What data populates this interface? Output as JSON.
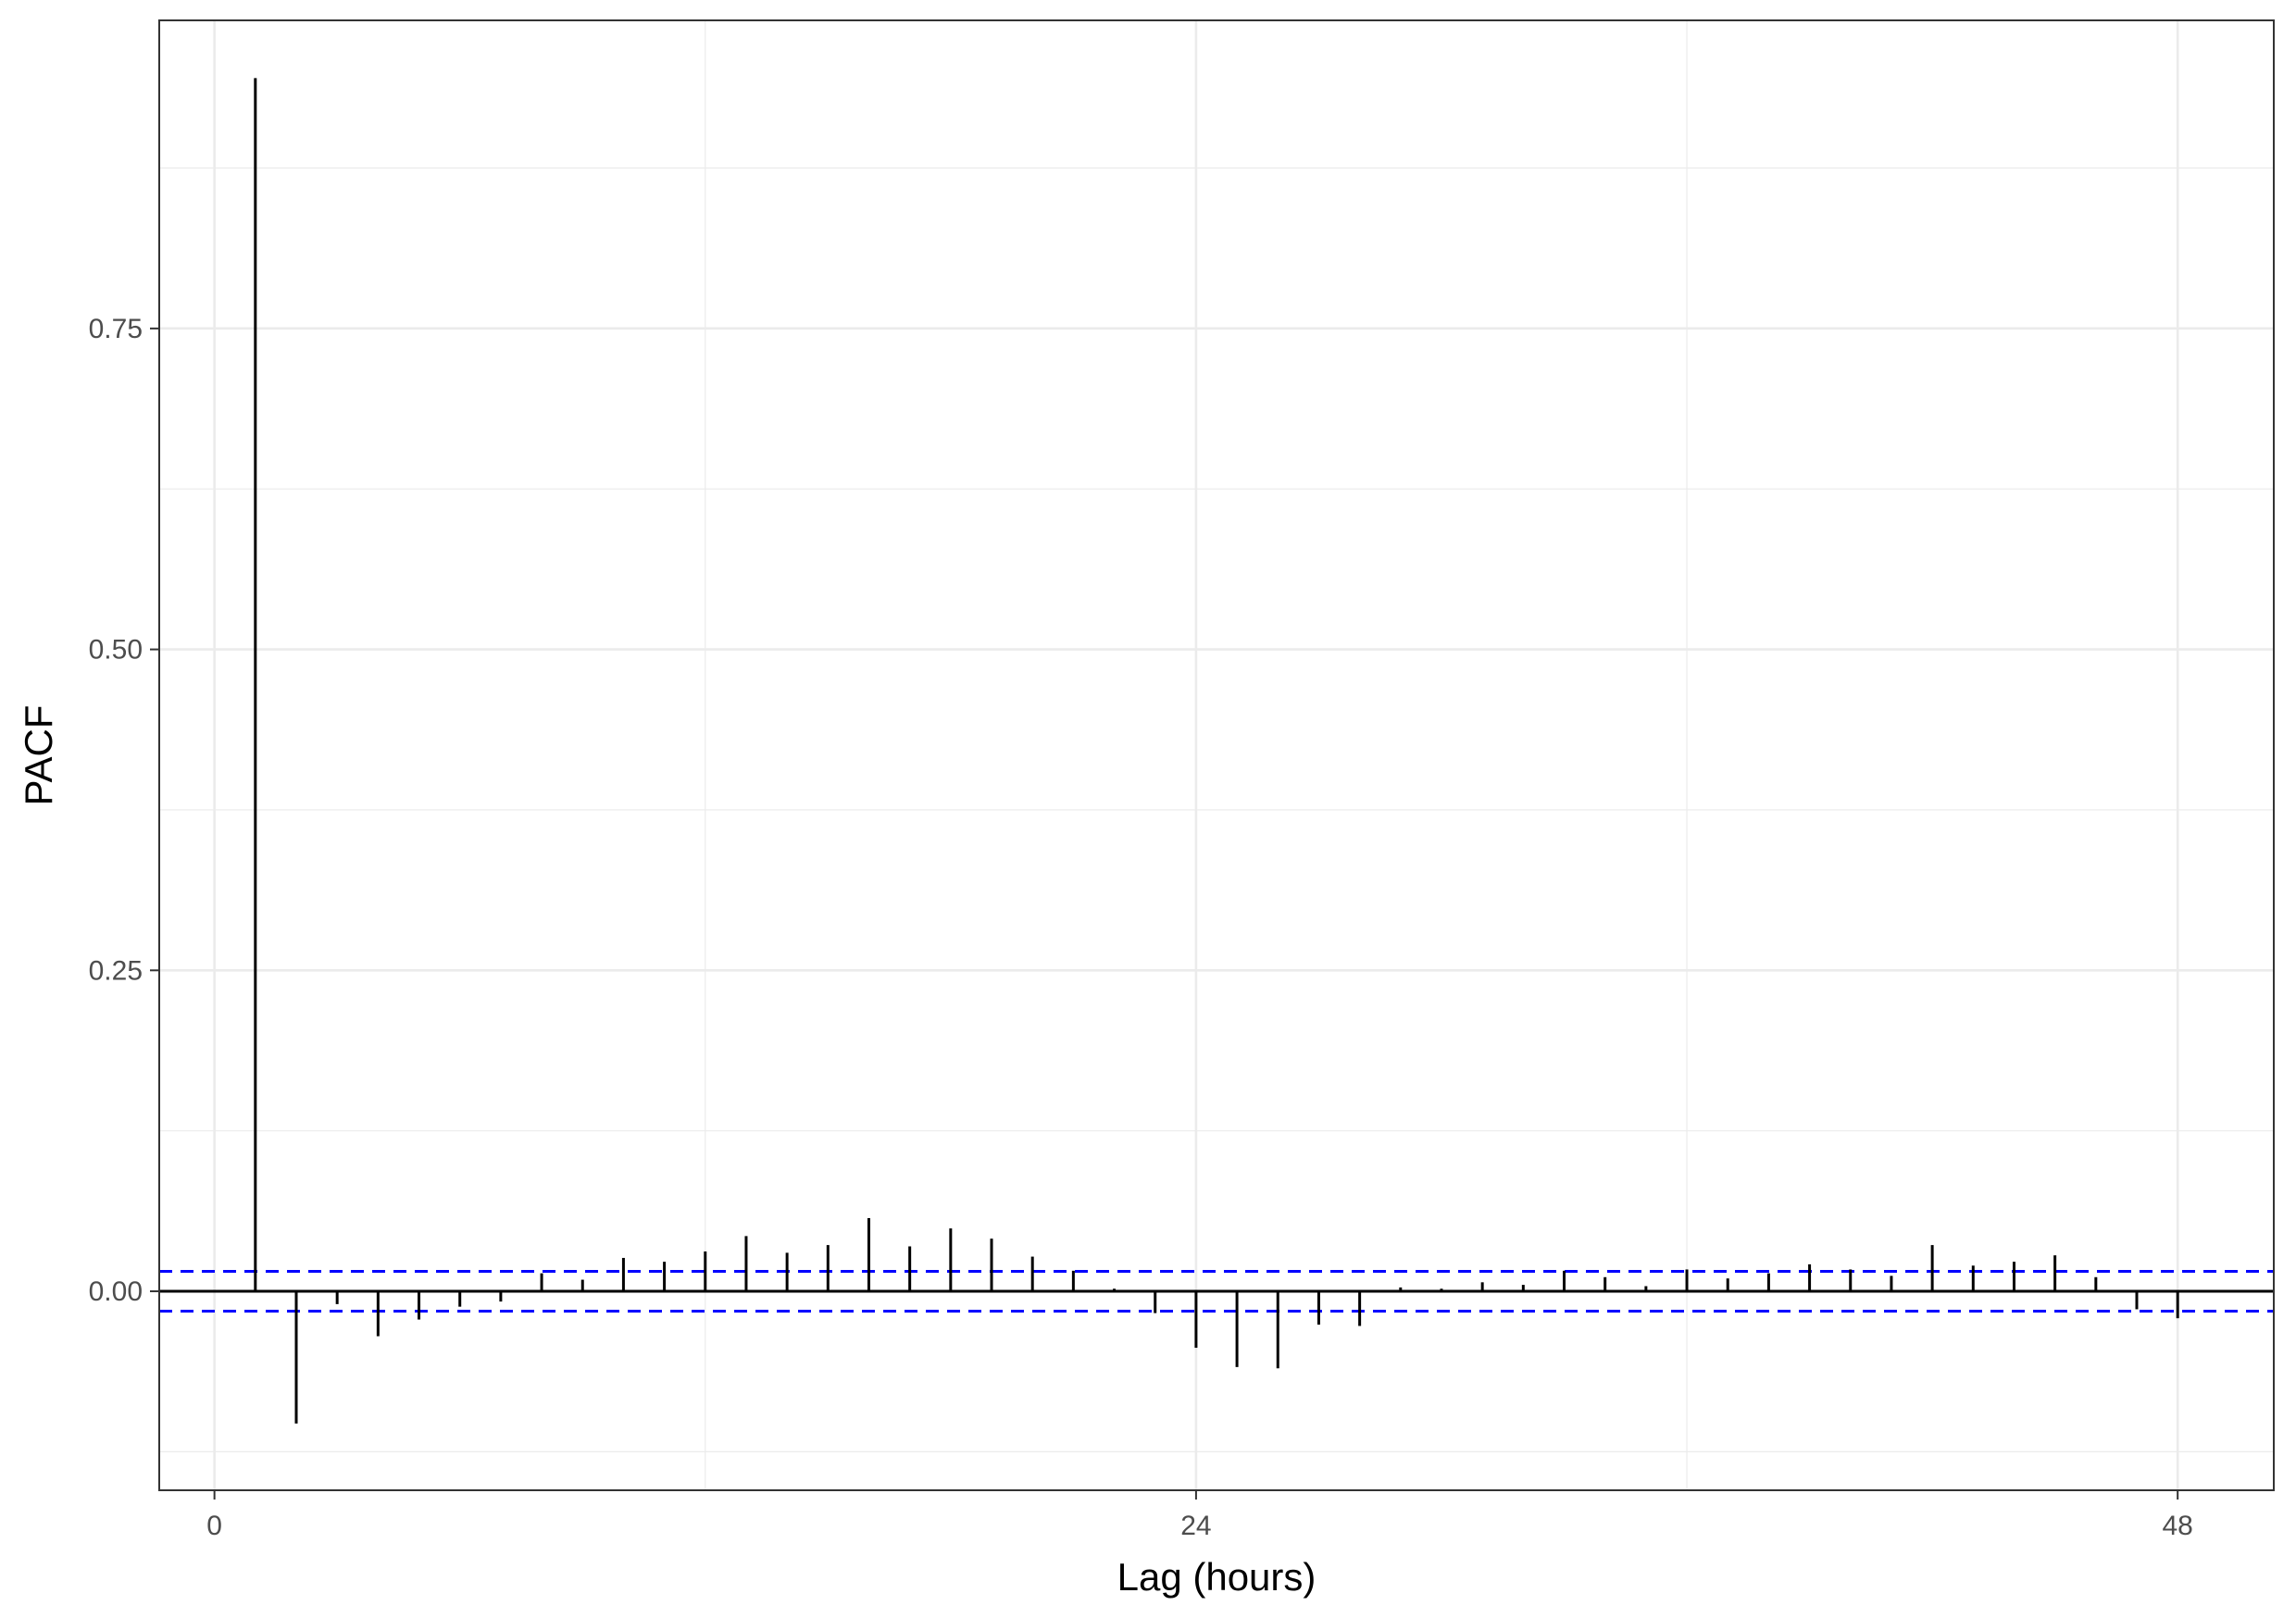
{
  "chart_data": {
    "type": "bar",
    "subtype": "pacf-correlogram",
    "title": "",
    "xlabel": "Lag (hours)",
    "ylabel": "PACF",
    "xlim": [
      -1.35,
      50.35
    ],
    "ylim": [
      -0.155,
      0.99
    ],
    "x_ticks": [
      {
        "value": 0,
        "label": "0"
      },
      {
        "value": 24,
        "label": "24"
      },
      {
        "value": 48,
        "label": "48"
      }
    ],
    "y_ticks": [
      {
        "value": 0.0,
        "label": "0.00"
      },
      {
        "value": 0.25,
        "label": "0.25"
      },
      {
        "value": 0.5,
        "label": "0.50"
      },
      {
        "value": 0.75,
        "label": "0.75"
      }
    ],
    "grid": true,
    "confidence_bound": 0.0155,
    "colors": {
      "bars": "#000000",
      "confidence": "#0000ff",
      "grid": "#ebebeb",
      "panel_border": "#333333",
      "tick_text": "#4d4d4d"
    },
    "x": [
      1,
      2,
      3,
      4,
      5,
      6,
      7,
      8,
      9,
      10,
      11,
      12,
      13,
      14,
      15,
      16,
      17,
      18,
      19,
      20,
      21,
      22,
      23,
      24,
      25,
      26,
      27,
      28,
      29,
      30,
      31,
      32,
      33,
      34,
      35,
      36,
      37,
      38,
      39,
      40,
      41,
      42,
      43,
      44,
      45,
      46,
      47,
      48
    ],
    "values": [
      0.945,
      -0.103,
      -0.01,
      -0.035,
      -0.022,
      -0.012,
      -0.008,
      0.014,
      0.009,
      0.026,
      0.023,
      0.031,
      0.043,
      0.03,
      0.036,
      0.057,
      0.035,
      0.049,
      0.041,
      0.027,
      0.016,
      0.002,
      -0.017,
      -0.044,
      -0.059,
      -0.06,
      -0.026,
      -0.027,
      0.003,
      0.002,
      0.007,
      0.005,
      0.016,
      0.011,
      0.004,
      0.017,
      0.01,
      0.014,
      0.021,
      0.017,
      0.012,
      0.036,
      0.02,
      0.023,
      0.028,
      0.011,
      -0.014,
      -0.021
    ]
  }
}
